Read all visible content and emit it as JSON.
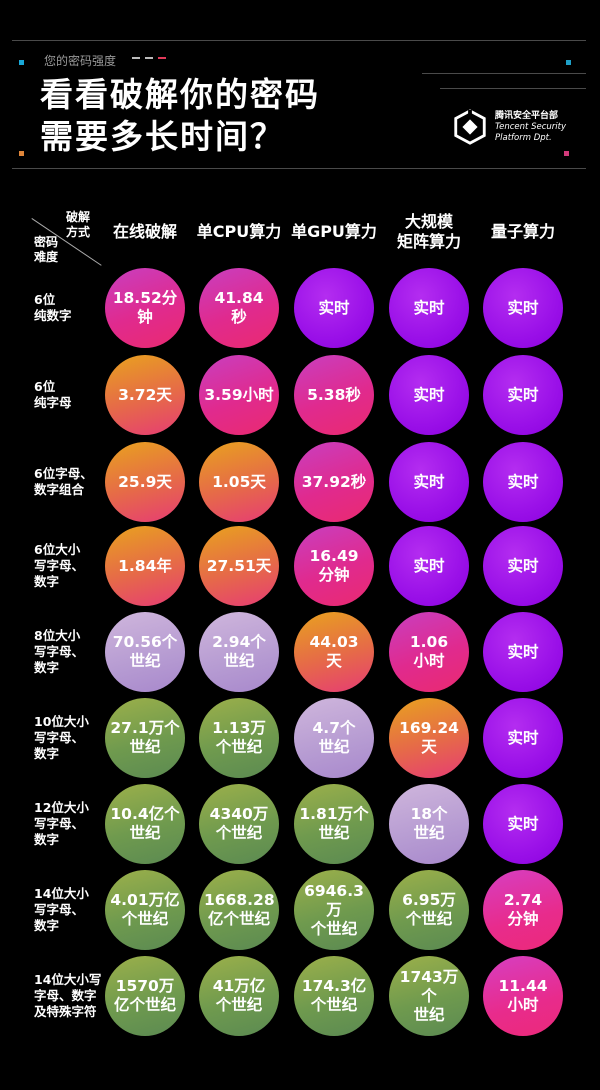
{
  "header": {
    "subtitle": "您的密码强度",
    "title_line1": "看看破解你的密码",
    "title_line2": "需要多长时间？",
    "brand_name": "腾讯安全平台部",
    "brand_en_line1": "Tencent Security",
    "brand_en_line2": "Platform Dpt."
  },
  "table": {
    "corner_top": [
      "破解",
      "方式"
    ],
    "corner_bottom": [
      "密码",
      "难度"
    ],
    "columns": [
      [
        "在线破解"
      ],
      [
        "单CPU算力"
      ],
      [
        "单GPU算力"
      ],
      [
        "大规模",
        "矩阵算力"
      ],
      [
        "量子算力"
      ]
    ],
    "rows": [
      {
        "label": [
          "6位",
          "纯数字"
        ],
        "cells": [
          [
            "18.52分",
            "钟"
          ],
          [
            "41.84",
            "秒"
          ],
          [
            "实时"
          ],
          [
            "实时"
          ],
          [
            "实时"
          ]
        ]
      },
      {
        "label": [
          "6位",
          "纯字母"
        ],
        "cells": [
          [
            "3.72天"
          ],
          [
            "3.59小时"
          ],
          [
            "5.38秒"
          ],
          [
            "实时"
          ],
          [
            "实时"
          ]
        ]
      },
      {
        "label": [
          "6位字母、",
          "数字组合"
        ],
        "cells": [
          [
            "25.9天"
          ],
          [
            "1.05天"
          ],
          [
            "37.92秒"
          ],
          [
            "实时"
          ],
          [
            "实时"
          ]
        ]
      },
      {
        "label": [
          "6位大小",
          "写字母、",
          "数字"
        ],
        "cells": [
          [
            "1.84年"
          ],
          [
            "27.51天"
          ],
          [
            "16.49",
            "分钟"
          ],
          [
            "实时"
          ],
          [
            "实时"
          ]
        ]
      },
      {
        "label": [
          "8位大小",
          "写字母、",
          "数字"
        ],
        "cells": [
          [
            "70.56个",
            "世纪"
          ],
          [
            "2.94个",
            "世纪"
          ],
          [
            "44.03",
            "天"
          ],
          [
            "1.06",
            "小时"
          ],
          [
            "实时"
          ]
        ]
      },
      {
        "label": [
          "10位大小",
          "写字母、",
          "数字"
        ],
        "cells": [
          [
            "27.1万个",
            "世纪"
          ],
          [
            "1.13万",
            "个世纪"
          ],
          [
            "4.7个",
            "世纪"
          ],
          [
            "169.24",
            "天"
          ],
          [
            "实时"
          ]
        ]
      },
      {
        "label": [
          "12位大小",
          "写字母、",
          "数字"
        ],
        "cells": [
          [
            "10.4亿个",
            "世纪"
          ],
          [
            "4340万",
            "个世纪"
          ],
          [
            "1.81万个",
            "世纪"
          ],
          [
            "18个",
            "世纪"
          ],
          [
            "实时"
          ]
        ]
      },
      {
        "label": [
          "14位大小",
          "写字母、",
          "数字"
        ],
        "cells": [
          [
            "4.01万亿",
            "个世纪"
          ],
          [
            "1668.28",
            "亿个世纪"
          ],
          [
            "6946.3万",
            "个世纪"
          ],
          [
            "6.95万",
            "个世纪"
          ],
          [
            "2.74",
            "分钟"
          ]
        ]
      },
      {
        "label": [
          "14位大小写",
          "字母、数字",
          "及特殊字符"
        ],
        "cells": [
          [
            "1570万",
            "亿个世纪"
          ],
          [
            "41万亿",
            "个世纪"
          ],
          [
            "174.3亿",
            "个世纪"
          ],
          [
            "1743万个",
            "世纪"
          ],
          [
            "11.44",
            "小时"
          ]
        ]
      }
    ]
  },
  "styles": {
    "levels": {
      "violet": "radial-gradient(circle at 40% 35%, #b42df0 0%, #9a10e8 60%, #8a00de 100%)",
      "magenta": "linear-gradient(160deg, #c83fc0 0%, #e02a8e 55%, #ea2a70 100%)",
      "orange": "linear-gradient(165deg, #e8a21e 0%, #e66a48 55%, #e63c74 100%)",
      "lavender": "linear-gradient(165deg, #cfb6dc 0%, #b69bd2 60%, #a888cc 100%)",
      "green": "linear-gradient(165deg, #9cb04a 0%, #6f9a4e 55%, #5b8a52 100%)",
      "magenta_hot": "linear-gradient(165deg, #d63fc2 0%, #e82b8c 60%, #ec2a7a 100%)"
    },
    "cell_levels": [
      [
        "magenta",
        "magenta",
        "violet",
        "violet",
        "violet"
      ],
      [
        "orange",
        "magenta",
        "magenta",
        "violet",
        "violet"
      ],
      [
        "orange",
        "orange",
        "magenta",
        "violet",
        "violet"
      ],
      [
        "orange",
        "orange",
        "magenta",
        "violet",
        "violet"
      ],
      [
        "lavender",
        "lavender",
        "orange",
        "magenta",
        "violet"
      ],
      [
        "green",
        "green",
        "lavender",
        "orange",
        "violet"
      ],
      [
        "green",
        "green",
        "green",
        "lavender",
        "violet"
      ],
      [
        "green",
        "green",
        "green",
        "green",
        "magenta_hot"
      ],
      [
        "green",
        "green",
        "green",
        "green",
        "magenta_hot"
      ]
    ],
    "accent_squares": [
      "#19a8d8",
      "#d23a7a",
      "#e0863a",
      "#1ea0c8"
    ],
    "dash_colors": [
      "#bbbbbb",
      "#bbbbbb",
      "#e23a5a"
    ]
  }
}
